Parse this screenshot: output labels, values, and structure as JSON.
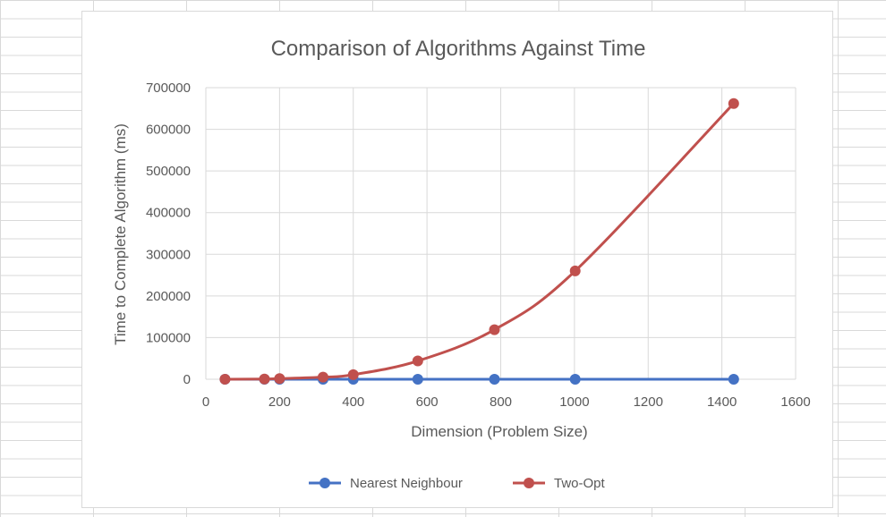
{
  "chart_data": {
    "type": "scatter",
    "title": "Comparison of Algorithms Against Time",
    "xlabel": "Dimension (Problem Size)",
    "ylabel": "Time to Complete Algorithm (ms)",
    "xlim": [
      0,
      1600
    ],
    "ylim": [
      0,
      700000
    ],
    "xticks": [
      "0",
      "200",
      "400",
      "600",
      "800",
      "1000",
      "1200",
      "1400",
      "1600"
    ],
    "yticks": [
      "0",
      "100000",
      "200000",
      "300000",
      "400000",
      "500000",
      "600000",
      "700000"
    ],
    "grid": true,
    "legend": "bottom",
    "series": [
      {
        "name": "Nearest Neighbour",
        "color": "#4472c4",
        "points": [
          [
            52,
            0
          ],
          [
            159,
            0
          ],
          [
            200,
            0
          ],
          [
            318,
            0
          ],
          [
            400,
            0
          ],
          [
            575,
            0
          ],
          [
            783,
            0
          ],
          [
            1002,
            0
          ],
          [
            1432,
            0
          ]
        ]
      },
      {
        "name": "Two-Opt",
        "color": "#c0504d",
        "points": [
          [
            52,
            100
          ],
          [
            159,
            600
          ],
          [
            200,
            1500
          ],
          [
            318,
            5000
          ],
          [
            400,
            11000
          ],
          [
            575,
            44000
          ],
          [
            783,
            119000
          ],
          [
            1002,
            260000
          ],
          [
            1432,
            662000
          ]
        ]
      }
    ]
  }
}
